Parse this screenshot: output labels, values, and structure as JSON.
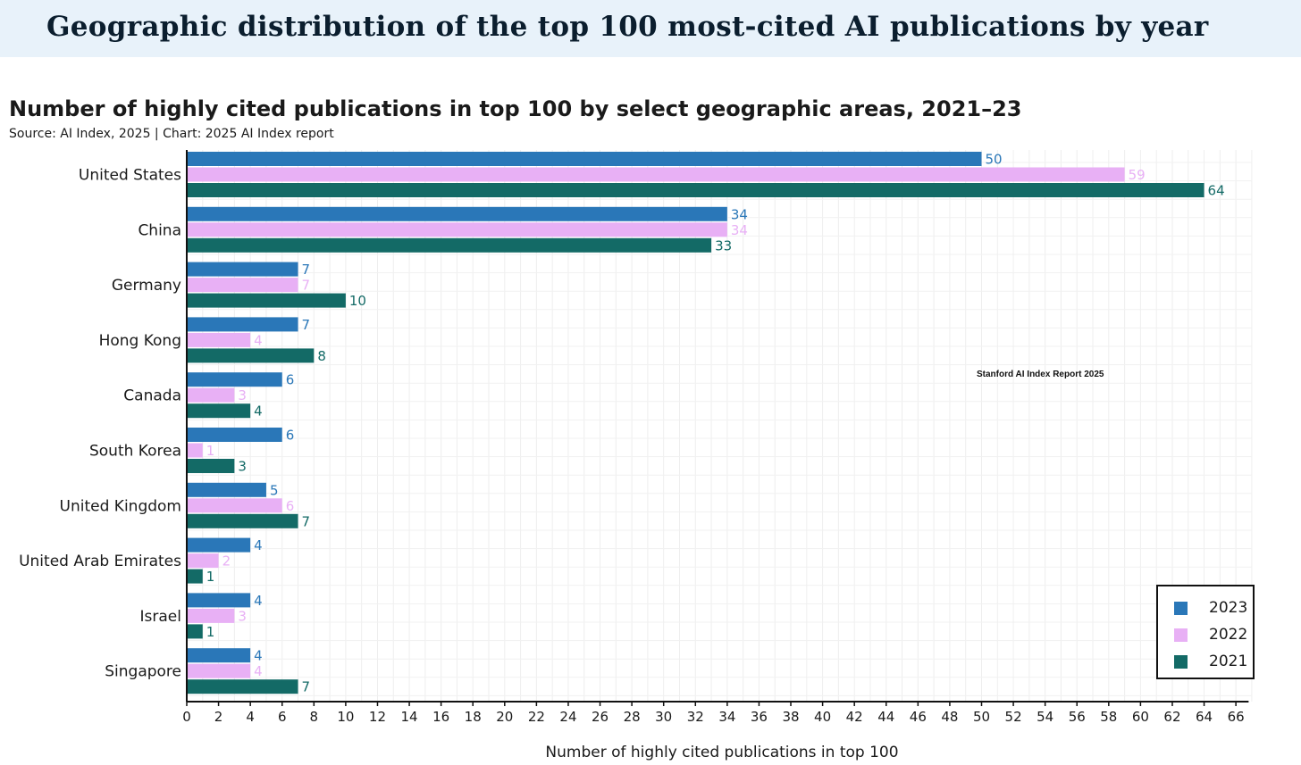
{
  "banner": {
    "title": "Geographic distribution of the top 100 most-cited AI publications by year"
  },
  "watermark": "Stanford AI Index Report 2025",
  "chart_data": {
    "type": "bar",
    "orientation": "horizontal",
    "title": "Number of highly cited publications in top 100 by select geographic areas, 2021–23",
    "subtitle": "Source: AI Index, 2025 | Chart: 2025 AI Index report",
    "xlabel": "Number of highly cited publications in top 100",
    "ylabel": "",
    "xlim": [
      0,
      66
    ],
    "xticks": [
      0,
      2,
      4,
      6,
      8,
      10,
      12,
      14,
      16,
      18,
      20,
      22,
      24,
      26,
      28,
      30,
      32,
      34,
      36,
      38,
      40,
      42,
      44,
      46,
      48,
      50,
      52,
      54,
      56,
      58,
      60,
      62,
      64,
      66
    ],
    "grid": true,
    "legend_position": "bottom-right",
    "categories": [
      "United States",
      "China",
      "Germany",
      "Hong Kong",
      "Canada",
      "South Korea",
      "United Kingdom",
      "United Arab Emirates",
      "Israel",
      "Singapore"
    ],
    "series": [
      {
        "name": "2023",
        "color": "#2a77b8",
        "values": [
          50,
          34,
          7,
          7,
          6,
          6,
          5,
          4,
          4,
          4
        ]
      },
      {
        "name": "2022",
        "color": "#e8b0f5",
        "values": [
          59,
          34,
          7,
          4,
          3,
          1,
          6,
          2,
          3,
          4
        ]
      },
      {
        "name": "2021",
        "color": "#136a66",
        "values": [
          64,
          33,
          10,
          8,
          4,
          3,
          7,
          1,
          1,
          7
        ]
      }
    ]
  }
}
